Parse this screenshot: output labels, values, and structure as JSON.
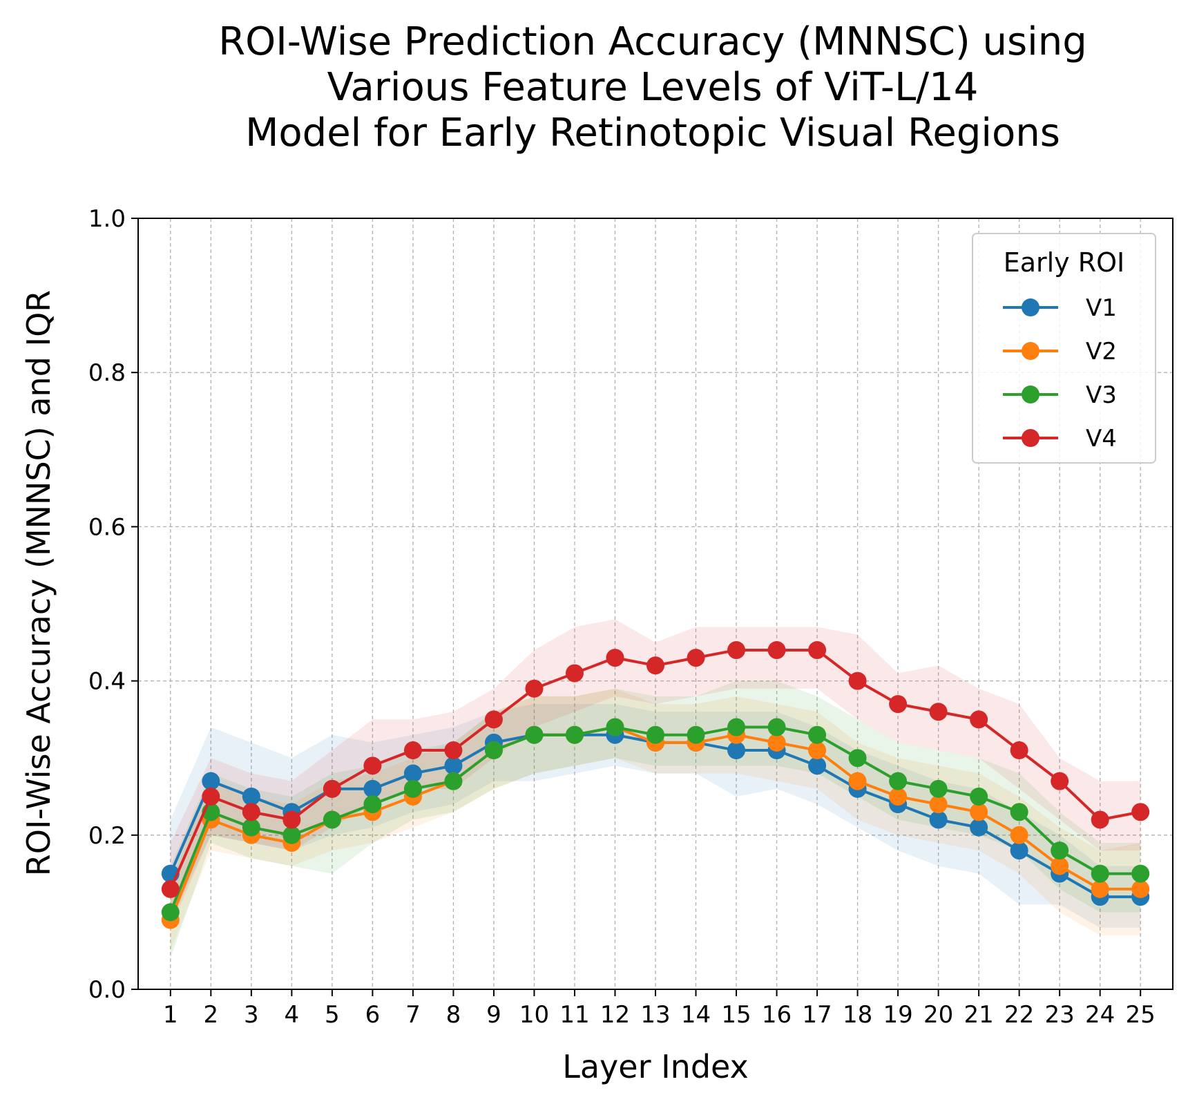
{
  "chart_data": {
    "type": "line",
    "title": "ROI-Wise Prediction Accuracy (MNNSC) using\nVarious Feature Levels of ViT-L/14\nModel for Early Retinotopic Visual Regions",
    "xlabel": "Layer Index",
    "ylabel": "ROI-Wise Accuracy (MNNSC) and IQR",
    "ylim": [
      0,
      1
    ],
    "yticks": [
      "0.0",
      "0.2",
      "0.4",
      "0.6",
      "0.8",
      "1.0"
    ],
    "x": [
      1,
      2,
      3,
      4,
      5,
      6,
      7,
      8,
      9,
      10,
      11,
      12,
      13,
      14,
      15,
      16,
      17,
      18,
      19,
      20,
      21,
      22,
      23,
      24,
      25
    ],
    "grid": true,
    "legend": {
      "title": "Early ROI",
      "placement": "top-right"
    },
    "series": [
      {
        "name": "V1",
        "color": "#1f77b4",
        "values": [
          0.15,
          0.27,
          0.25,
          0.23,
          0.26,
          0.26,
          0.28,
          0.29,
          0.32,
          0.33,
          0.33,
          0.33,
          0.32,
          0.32,
          0.31,
          0.31,
          0.29,
          0.26,
          0.24,
          0.22,
          0.21,
          0.18,
          0.15,
          0.12,
          0.12
        ],
        "iqr_low": [
          0.09,
          0.2,
          0.19,
          0.18,
          0.2,
          0.21,
          0.23,
          0.24,
          0.27,
          0.27,
          0.28,
          0.29,
          0.28,
          0.28,
          0.25,
          0.26,
          0.24,
          0.21,
          0.18,
          0.16,
          0.15,
          0.11,
          0.11,
          0.08,
          0.08
        ],
        "iqr_high": [
          0.22,
          0.34,
          0.32,
          0.3,
          0.33,
          0.32,
          0.33,
          0.34,
          0.36,
          0.37,
          0.37,
          0.37,
          0.36,
          0.36,
          0.36,
          0.36,
          0.34,
          0.31,
          0.29,
          0.27,
          0.26,
          0.23,
          0.2,
          0.16,
          0.16
        ]
      },
      {
        "name": "V2",
        "color": "#ff7f0e",
        "values": [
          0.09,
          0.22,
          0.2,
          0.19,
          0.22,
          0.23,
          0.25,
          0.27,
          0.31,
          0.33,
          0.33,
          0.34,
          0.32,
          0.32,
          0.33,
          0.32,
          0.31,
          0.27,
          0.25,
          0.24,
          0.23,
          0.2,
          0.16,
          0.13,
          0.13
        ],
        "iqr_low": [
          0.05,
          0.18,
          0.17,
          0.16,
          0.18,
          0.19,
          0.21,
          0.23,
          0.26,
          0.28,
          0.29,
          0.3,
          0.28,
          0.28,
          0.28,
          0.27,
          0.26,
          0.22,
          0.2,
          0.19,
          0.18,
          0.15,
          0.1,
          0.07,
          0.07
        ],
        "iqr_high": [
          0.14,
          0.27,
          0.25,
          0.24,
          0.27,
          0.28,
          0.3,
          0.32,
          0.36,
          0.38,
          0.38,
          0.39,
          0.37,
          0.37,
          0.38,
          0.37,
          0.36,
          0.32,
          0.3,
          0.29,
          0.28,
          0.25,
          0.21,
          0.18,
          0.19
        ]
      },
      {
        "name": "V3",
        "color": "#2ca02c",
        "values": [
          0.1,
          0.23,
          0.21,
          0.2,
          0.22,
          0.24,
          0.26,
          0.27,
          0.31,
          0.33,
          0.33,
          0.34,
          0.33,
          0.33,
          0.34,
          0.34,
          0.33,
          0.3,
          0.27,
          0.26,
          0.25,
          0.23,
          0.18,
          0.15,
          0.15
        ],
        "iqr_low": [
          0.04,
          0.19,
          0.17,
          0.16,
          0.15,
          0.19,
          0.22,
          0.23,
          0.26,
          0.28,
          0.29,
          0.3,
          0.29,
          0.29,
          0.29,
          0.29,
          0.28,
          0.25,
          0.22,
          0.21,
          0.2,
          0.18,
          0.13,
          0.1,
          0.1
        ],
        "iqr_high": [
          0.16,
          0.28,
          0.26,
          0.25,
          0.28,
          0.29,
          0.31,
          0.32,
          0.36,
          0.38,
          0.38,
          0.39,
          0.38,
          0.38,
          0.4,
          0.4,
          0.38,
          0.35,
          0.32,
          0.31,
          0.3,
          0.28,
          0.23,
          0.19,
          0.19
        ]
      },
      {
        "name": "V4",
        "color": "#d62728",
        "values": [
          0.13,
          0.25,
          0.23,
          0.22,
          0.26,
          0.29,
          0.31,
          0.31,
          0.35,
          0.39,
          0.41,
          0.43,
          0.42,
          0.43,
          0.44,
          0.44,
          0.44,
          0.4,
          0.37,
          0.36,
          0.35,
          0.31,
          0.27,
          0.22,
          0.23
        ],
        "iqr_low": [
          0.08,
          0.2,
          0.19,
          0.18,
          0.21,
          0.24,
          0.26,
          0.26,
          0.3,
          0.34,
          0.36,
          0.38,
          0.37,
          0.38,
          0.39,
          0.39,
          0.39,
          0.35,
          0.32,
          0.31,
          0.3,
          0.26,
          0.22,
          0.18,
          0.18
        ],
        "iqr_high": [
          0.19,
          0.3,
          0.28,
          0.27,
          0.31,
          0.35,
          0.35,
          0.36,
          0.39,
          0.44,
          0.47,
          0.48,
          0.45,
          0.47,
          0.47,
          0.47,
          0.47,
          0.46,
          0.41,
          0.42,
          0.39,
          0.37,
          0.3,
          0.27,
          0.27
        ]
      }
    ]
  }
}
